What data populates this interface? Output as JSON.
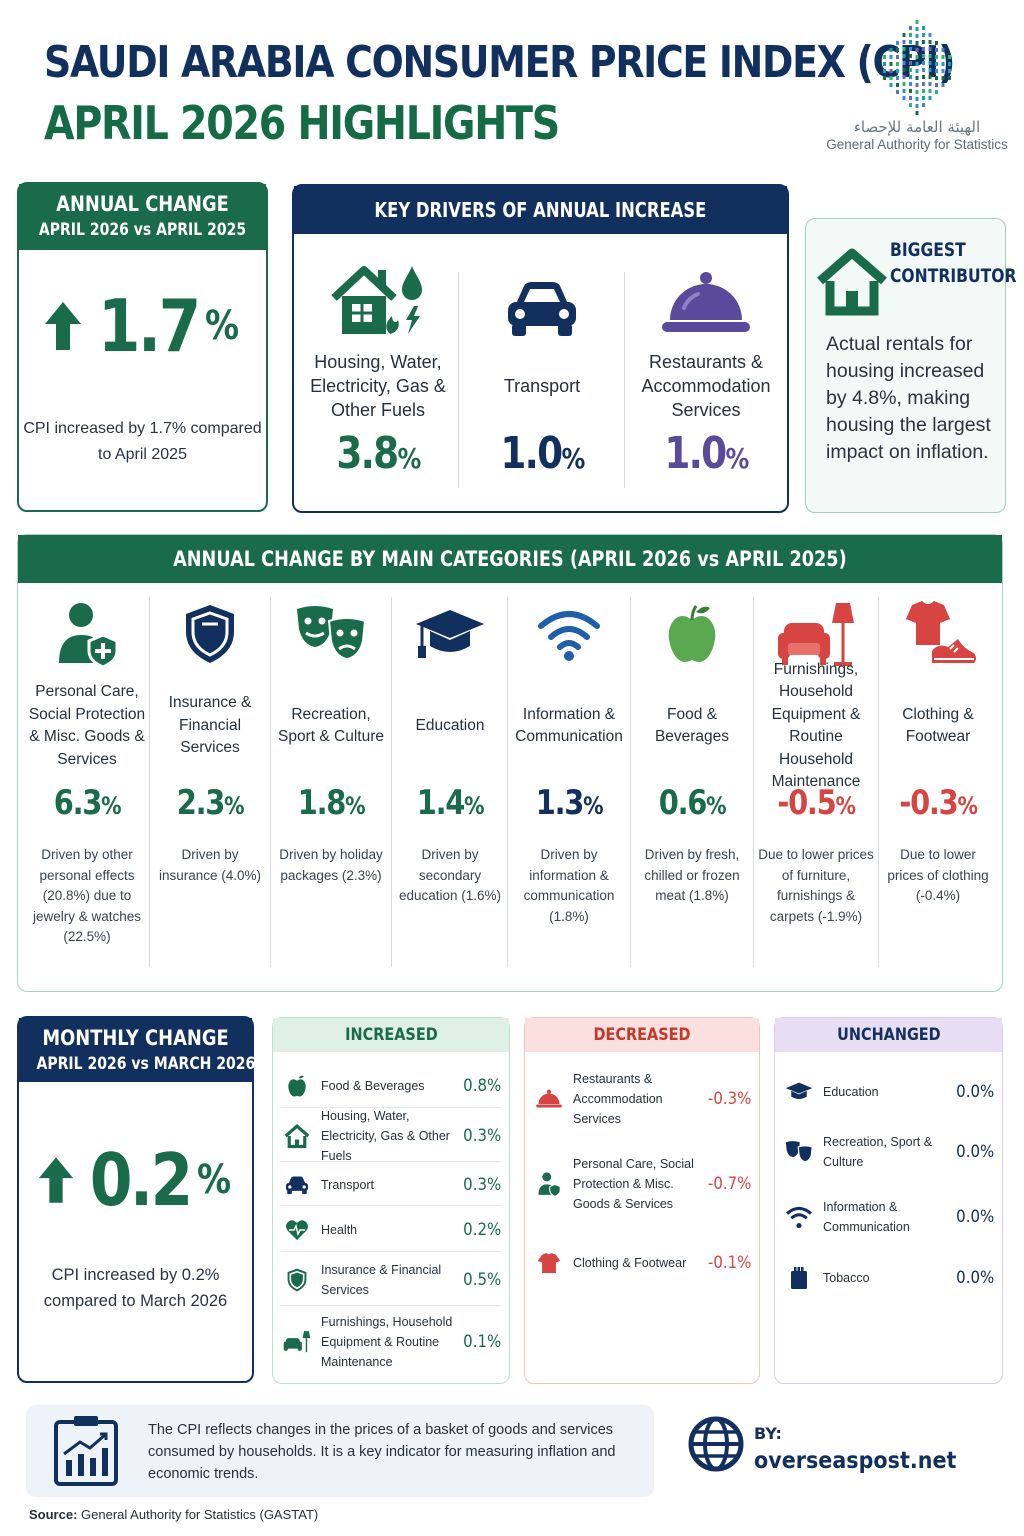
{
  "title": {
    "line1": "SAUDI ARABIA CONSUMER PRICE INDEX (CPI)",
    "line2": "APRIL 2026 HIGHLIGHTS"
  },
  "logo": {
    "arabic": "الهيئة العامة للإحصاء",
    "english": "General Authority for Statistics"
  },
  "annual": {
    "heading": "ANNUAL CHANGE",
    "period": "APRIL 2026 vs APRIL 2025",
    "value": "1.7",
    "unit": "%",
    "description": "CPI increased by 1.7% compared to April 2025",
    "color": "#1a6b4b"
  },
  "drivers": {
    "heading": "KEY DRIVERS OF ANNUAL INCREASE",
    "items": [
      {
        "label": "Housing, Water, Electricity, Gas & Other Fuels",
        "value": "3.8",
        "unit": "%",
        "icon": "house-utilities-icon",
        "color": "#1a6b4b"
      },
      {
        "label": "Transport",
        "value": "1.0",
        "unit": "%",
        "icon": "car-icon",
        "color": "#12305e"
      },
      {
        "label": "Restaurants & Accommodation Services",
        "value": "1.0",
        "unit": "%",
        "icon": "cloche-icon",
        "color": "#5a4a9c"
      }
    ]
  },
  "contributor": {
    "heading_line1": "BIGGEST",
    "heading_line2": "CONTRIBUTOR",
    "text": "Actual rentals for housing increased by 4.8%, making housing the largest impact on inflation."
  },
  "categories": {
    "heading": "ANNUAL CHANGE BY MAIN CATEGORIES (APRIL 2026 vs APRIL 2025)",
    "items": [
      {
        "label": "Personal Care, Social Protection & Misc. Goods & Services",
        "value": "6.3",
        "unit": "%",
        "note": "Driven by other personal effects (20.8%) due to jewelry & watches (22.5%)",
        "icon": "person-shield-icon",
        "color": "#1a6b4b"
      },
      {
        "label": "Insurance & Financial Services",
        "value": "2.3",
        "unit": "%",
        "note": "Driven by insurance (4.0%)",
        "icon": "shield-icon",
        "color": "#1a6b4b"
      },
      {
        "label": "Recreation, Sport & Culture",
        "value": "1.8",
        "unit": "%",
        "note": "Driven by holiday packages (2.3%)",
        "icon": "theater-masks-icon",
        "color": "#1a6b4b"
      },
      {
        "label": "Education",
        "value": "1.4",
        "unit": "%",
        "note": "Driven by secondary education (1.6%)",
        "icon": "graduation-cap-icon",
        "color": "#1a6b4b"
      },
      {
        "label": "Information & Communication",
        "value": "1.3",
        "unit": "%",
        "note": "Driven by information & communication (1.8%)",
        "icon": "wifi-icon",
        "color": "#12305e"
      },
      {
        "label": "Food & Beverages",
        "value": "0.6",
        "unit": "%",
        "note": "Driven by fresh, chilled or frozen meat (1.8%)",
        "icon": "apple-icon",
        "color": "#1a6b4b"
      },
      {
        "label": "Furnishings, Household Equipment & Routine Household Maintenance",
        "value": "-0.5",
        "unit": "%",
        "note": "Due to lower prices of furniture, furnishings & carpets (-1.9%)",
        "icon": "armchair-lamp-icon",
        "color": "#d64541"
      },
      {
        "label": "Clothing & Footwear",
        "value": "-0.3",
        "unit": "%",
        "note": "Due to lower prices of clothing (-0.4%)",
        "icon": "shirt-shoe-icon",
        "color": "#d64541"
      }
    ]
  },
  "monthly": {
    "heading": "MONTHLY CHANGE",
    "period": "APRIL 2026 vs MARCH 2026",
    "value": "0.2",
    "unit": "%",
    "description": "CPI increased by 0.2% compared to March 2026",
    "color": "#1a6b4b"
  },
  "increased": {
    "heading": "INCREASED",
    "color": "#1a6b4b",
    "items": [
      {
        "label": "Food & Beverages",
        "value": "0.8%",
        "icon": "apple-icon"
      },
      {
        "label": "Housing, Water, Electricity, Gas & Other Fuels",
        "value": "0.3%",
        "icon": "house-icon"
      },
      {
        "label": "Transport",
        "value": "0.3%",
        "icon": "car-icon"
      },
      {
        "label": "Health",
        "value": "0.2%",
        "icon": "heart-pulse-icon"
      },
      {
        "label": "Insurance & Financial Services",
        "value": "0.5%",
        "icon": "shield-icon"
      },
      {
        "label": "Furnishings, Household Equipment & Routine Maintenance",
        "value": "0.1%",
        "icon": "armchair-lamp-icon"
      }
    ]
  },
  "decreased": {
    "heading": "DECREASED",
    "color": "#d64541",
    "items": [
      {
        "label": "Restaurants & Accommodation Services",
        "value": "-0.3%",
        "icon": "cloche-icon"
      },
      {
        "label": "Personal Care, Social Protection & Misc. Goods & Services",
        "value": "-0.7%",
        "icon": "person-shield-icon"
      },
      {
        "label": "Clothing & Footwear",
        "value": "-0.1%",
        "icon": "shirt-icon"
      }
    ]
  },
  "unchanged": {
    "heading": "UNCHANGED",
    "color": "#12305e",
    "items": [
      {
        "label": "Education",
        "value": "0.0%",
        "icon": "graduation-cap-icon"
      },
      {
        "label": "Recreation, Sport & Culture",
        "value": "0.0%",
        "icon": "theater-masks-icon"
      },
      {
        "label": "Information & Communication",
        "value": "0.0%",
        "icon": "wifi-icon"
      },
      {
        "label": "Tobacco",
        "value": "0.0%",
        "icon": "cigarette-pack-icon"
      }
    ]
  },
  "footer": {
    "text": "The CPI reflects changes in the prices of a basket of goods and services consumed by households. It is a key indicator for measuring inflation and economic trends.",
    "by_label": "BY:",
    "site": "overseaspost.net",
    "source_label": "Source:",
    "source": "General Authority for Statistics (GASTAT)"
  }
}
